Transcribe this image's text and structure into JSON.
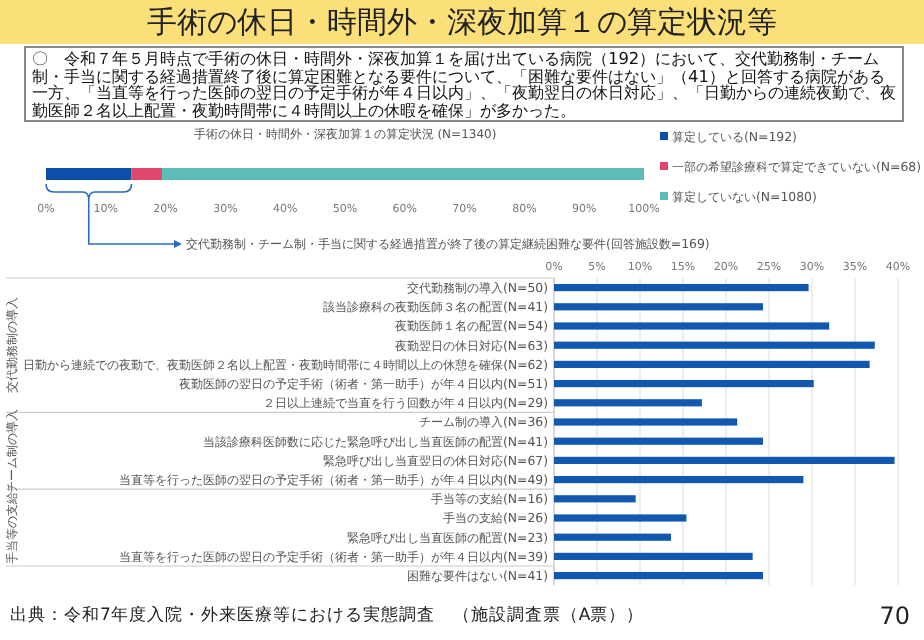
{
  "chart_data": [
    {
      "type": "bar",
      "orientation": "horizontal",
      "stacked": true,
      "title": "手術の休日・時間外・深夜加算１の算定状況等",
      "subtitle": "手術の休日・時間外・深夜加算１の算定状況 (N=1340)",
      "annotations": [
        "〇　令和７年５月時点で手術の休日・時間外・深夜加算１を届け出ている病院（192）において、交代勤務制・チーム制・手当に関する経過措置終了後に算定困難となる要件について、「困難な要件はない」（41）と回答する病院がある一方、「当直等を行った医師の翌日の予定手術が年４日以内」、「夜勤翌日の休日対応」、「日勤からの連続夜勤で、夜勤医師２名以上配置・夜勤時間帯に４時間以上の休暇を確保」が多かった。"
      ],
      "categories": [
        null
      ],
      "xlim": [
        0,
        100
      ],
      "xticks": [
        {
          "value": 0,
          "label": "0%"
        },
        {
          "value": 10,
          "label": "10%"
        },
        {
          "value": 20,
          "label": "20%"
        },
        {
          "value": 30,
          "label": "30%"
        },
        {
          "value": 40,
          "label": "40%"
        },
        {
          "value": 50,
          "label": "50%"
        },
        {
          "value": 60,
          "label": "60%"
        },
        {
          "value": 70,
          "label": "70%"
        },
        {
          "value": 80,
          "label": "80%"
        },
        {
          "value": 90,
          "label": "90%"
        },
        {
          "value": 100,
          "label": "100%"
        }
      ],
      "legend": "right",
      "series": [
        {
          "name": "算定している(N=192)",
          "color": "#0b4fa8",
          "values": [
            14.3
          ]
        },
        {
          "name": "一部の希望診療科で算定できていない(N=68)",
          "color": "#e0476a",
          "values": [
            5.1
          ]
        },
        {
          "name": "算定していない(N=1080)",
          "color": "#5bbcb8",
          "values": [
            80.6
          ]
        }
      ]
    },
    {
      "type": "bar",
      "orientation": "horizontal",
      "title": "交代勤務制・チーム制・手当に関する経過措置が終了後の算定継続困難な要件(回答施設数=169)",
      "categories": [
        "交代勤務制の導入(N=50)",
        "該当診療科の夜勤医師３名の配置(N=41)",
        "夜勤医師１名の配置(N=54)",
        "夜勤翌日の休日対応(N=63)",
        "日勤から連続での夜勤で、夜勤医師２名以上配置・夜勤時間帯に４時間以上の休憩を確保(N=62)",
        "夜勤医師の翌日の予定手術（術者・第一助手）が年４日以内(N=51)",
        "２日以上連続で当直を行う回数が年４日以内(N=29)",
        "チーム制の導入(N=36)",
        "当該診療科医師数に応じた緊急呼び出し当直医師の配置(N=41)",
        "緊急呼び出し当直翌日の休日対応(N=67)",
        "当直等を行った医師の翌日の予定手術（術者・第一助手）が年４日以内(N=49)",
        "手当等の支給(N=16)",
        "手当の支給(N=26)",
        "緊急呼び出し当直医師の配置(N=23)",
        "当直等を行った医師の翌日の予定手術（術者・第一助手）が年４日以内(N=39)",
        "困難な要件はない(N=41)"
      ],
      "values": [
        29.6,
        24.3,
        32.0,
        37.3,
        36.7,
        30.2,
        17.2,
        21.3,
        24.3,
        39.6,
        29.0,
        9.5,
        15.4,
        13.6,
        23.1,
        24.3
      ],
      "color": "#1257b0",
      "xlim": [
        0,
        40
      ],
      "xticks": [
        {
          "value": 0,
          "label": "0%"
        },
        {
          "value": 5,
          "label": "5%"
        },
        {
          "value": 10,
          "label": "10%"
        },
        {
          "value": 15,
          "label": "15%"
        },
        {
          "value": 20,
          "label": "20%"
        },
        {
          "value": 25,
          "label": "25%"
        },
        {
          "value": 30,
          "label": "30%"
        },
        {
          "value": 35,
          "label": "35%"
        },
        {
          "value": 40,
          "label": "40%"
        }
      ],
      "grid": "x",
      "annotations": [
        "交代勤務制の導入",
        "チーム制の導入",
        "手当等の支給",
        "出典：令和7年度入院・外来医療等における実態調査　（施設調査票（A票））",
        "70"
      ]
    }
  ]
}
